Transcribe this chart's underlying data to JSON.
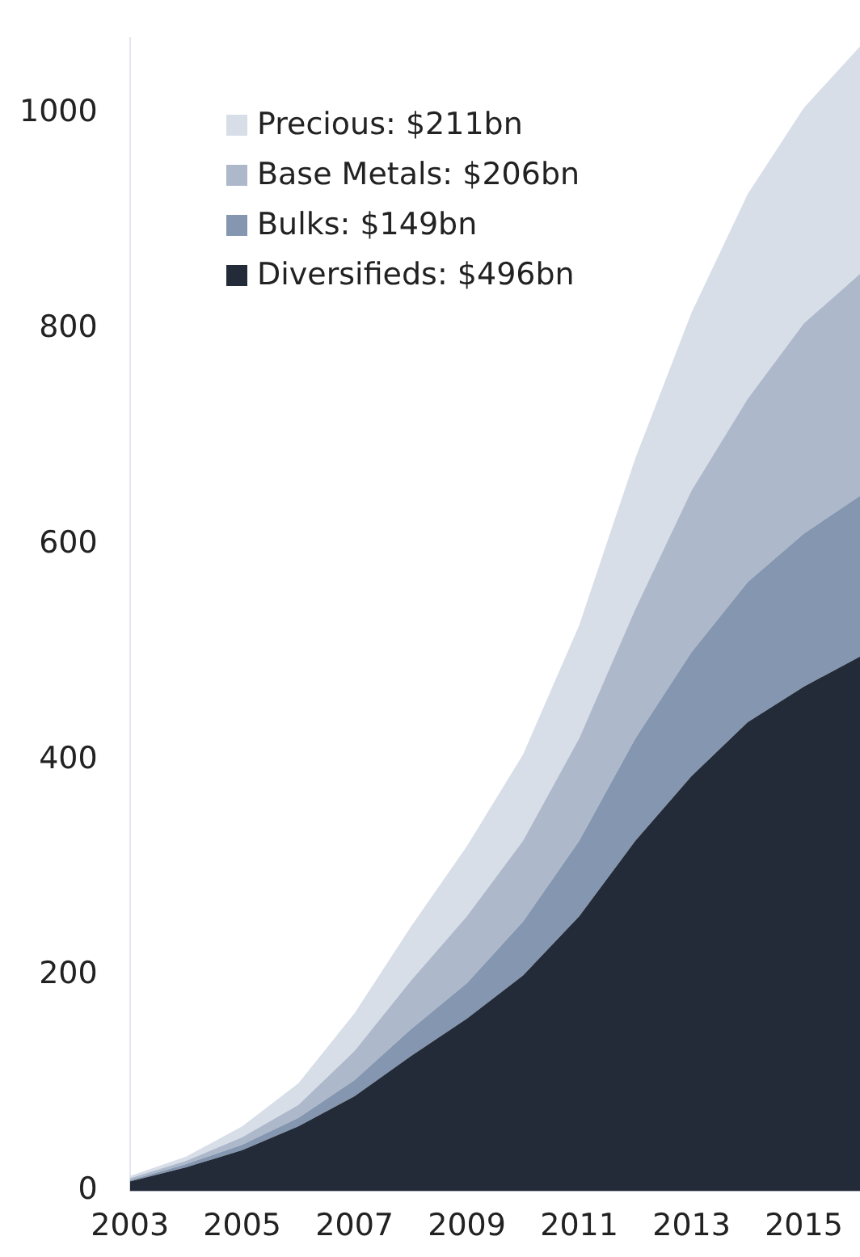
{
  "chart_data": {
    "type": "area",
    "stacked": true,
    "x": [
      2003,
      2004,
      2005,
      2006,
      2007,
      2008,
      2009,
      2010,
      2011,
      2012,
      2013,
      2014,
      2015,
      2016
    ],
    "xlim": [
      2003,
      2016
    ],
    "xticks": [
      2003,
      2005,
      2007,
      2009,
      2011,
      2013,
      2015
    ],
    "ylim": [
      0,
      1070
    ],
    "yticks": [
      0,
      200,
      400,
      600,
      800,
      1000
    ],
    "grid": false,
    "legend": "top left",
    "series": [
      {
        "name": "Diversifieds: $496bn",
        "color": "#232b38",
        "values": [
          9,
          22,
          38,
          60,
          88,
          125,
          160,
          200,
          255,
          325,
          385,
          435,
          468,
          496
        ]
      },
      {
        "name": "Bulks: $149bn",
        "color": "#8597b0",
        "values": [
          1,
          3,
          5,
          8,
          15,
          25,
          33,
          50,
          70,
          95,
          115,
          130,
          142,
          149
        ]
      },
      {
        "name": "Base Metals: $206bn",
        "color": "#adb8ca",
        "values": [
          2,
          3,
          7,
          12,
          27,
          45,
          62,
          75,
          95,
          120,
          150,
          170,
          195,
          206
        ]
      },
      {
        "name": "Precious: $211bn",
        "color": "#d8dee8",
        "values": [
          2,
          4,
          10,
          20,
          35,
          50,
          65,
          80,
          105,
          140,
          165,
          190,
          200,
          211
        ]
      }
    ]
  }
}
